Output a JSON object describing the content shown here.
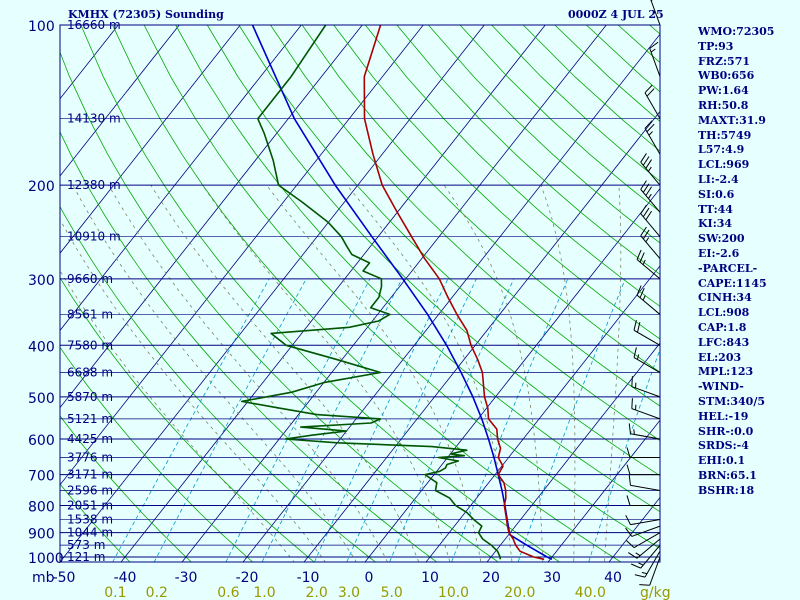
{
  "header": {
    "title": "KMHX (72305) Sounding",
    "time": "0000Z  4 JUL 25"
  },
  "indices": [
    "WMO:72305",
    "TP:93",
    "FRZ:571",
    "WB0:656",
    "PW:1.64",
    "RH:50.8",
    "MAXT:31.9",
    "TH:5749",
    "L57:4.9",
    "LCL:969",
    "LI:-2.4",
    "SI:0.6",
    "TT:44",
    "KI:34",
    "SW:200",
    "EI:-2.6",
    "-PARCEL-",
    "CAPE:1145",
    "CINH:34",
    "LCL:908",
    "CAP:1.8",
    "LFC:843",
    "EL:203",
    "MPL:123",
    "-WIND-",
    "STM:340/5",
    "HEL:-19",
    "SHR-:0.0",
    "SRDS:-4",
    "EHI:0.1",
    "BRN:65.1",
    "BSHR:18"
  ],
  "colors": {
    "axis_text": "#000080",
    "isobar": "#000080",
    "isotherm": "#000080",
    "dry_adiabat": "#00aa00",
    "moist_adiabat": "#808060",
    "mixing_ratio": "#0099cc",
    "temperature": "#aa0000",
    "dewpoint": "#005500",
    "parcel": "#0000cc",
    "mixing_label": "#999900",
    "wind_barb": "#000000",
    "background": "#e6ffff"
  },
  "chart_data": {
    "type": "skew-t log-p",
    "units_label": "mb",
    "pressure_ticks": [
      100,
      200,
      300,
      400,
      500,
      600,
      700,
      800,
      900,
      1000
    ],
    "height_labels": [
      {
        "p": 100,
        "label": "16660 m"
      },
      {
        "p": 150,
        "label": "14130 m"
      },
      {
        "p": 200,
        "label": "12380 m"
      },
      {
        "p": 250,
        "label": "10910 m"
      },
      {
        "p": 300,
        "label": "9660 m"
      },
      {
        "p": 350,
        "label": "8561 m"
      },
      {
        "p": 400,
        "label": "7580 m"
      },
      {
        "p": 450,
        "label": "6688 m"
      },
      {
        "p": 500,
        "label": "5870 m"
      },
      {
        "p": 550,
        "label": "5121 m"
      },
      {
        "p": 600,
        "label": "4425 m"
      },
      {
        "p": 650,
        "label": "3776 m"
      },
      {
        "p": 700,
        "label": "3171 m"
      },
      {
        "p": 750,
        "label": "2596 m"
      },
      {
        "p": 800,
        "label": "2051 m"
      },
      {
        "p": 850,
        "label": "1538 m"
      },
      {
        "p": 900,
        "label": "1044 m"
      },
      {
        "p": 950,
        "label": "573 m"
      },
      {
        "p": 1000,
        "label": "121 m"
      }
    ],
    "temperature_ticks": [
      -50,
      -40,
      -30,
      -20,
      -10,
      0,
      10,
      20,
      30,
      40
    ],
    "mixing_ratio_labels": [
      "0.1",
      "0.2",
      "0.6",
      "1.0",
      "2.0",
      "3.0",
      "5.0",
      "10.0",
      "20.0",
      "40.0"
    ],
    "mixing_ratio_unit": "g/kg",
    "temperature_profile": [
      {
        "p": 1010,
        "t": 29
      },
      {
        "p": 1000,
        "t": 27
      },
      {
        "p": 975,
        "t": 24
      },
      {
        "p": 950,
        "t": 22.5
      },
      {
        "p": 925,
        "t": 21.3
      },
      {
        "p": 900,
        "t": 19.8
      },
      {
        "p": 875,
        "t": 18.7
      },
      {
        "p": 850,
        "t": 17.7
      },
      {
        "p": 800,
        "t": 15.5
      },
      {
        "p": 775,
        "t": 14.8
      },
      {
        "p": 750,
        "t": 13.8
      },
      {
        "p": 725,
        "t": 12.5
      },
      {
        "p": 700,
        "t": 10.5
      },
      {
        "p": 675,
        "t": 10.2
      },
      {
        "p": 650,
        "t": 8.3
      },
      {
        "p": 625,
        "t": 7.5
      },
      {
        "p": 600,
        "t": 5.8
      },
      {
        "p": 575,
        "t": 4.4
      },
      {
        "p": 550,
        "t": 1.7
      },
      {
        "p": 525,
        "t": 0.2
      },
      {
        "p": 500,
        "t": -1.8
      },
      {
        "p": 475,
        "t": -3.5
      },
      {
        "p": 450,
        "t": -5.3
      },
      {
        "p": 425,
        "t": -7.8
      },
      {
        "p": 400,
        "t": -10.7
      },
      {
        "p": 375,
        "t": -13.3
      },
      {
        "p": 350,
        "t": -17
      },
      {
        "p": 325,
        "t": -20.7
      },
      {
        "p": 300,
        "t": -24.5
      },
      {
        "p": 275,
        "t": -29.5
      },
      {
        "p": 250,
        "t": -34.5
      },
      {
        "p": 225,
        "t": -40
      },
      {
        "p": 200,
        "t": -46
      },
      {
        "p": 175,
        "t": -51.5
      },
      {
        "p": 150,
        "t": -57.5
      },
      {
        "p": 125,
        "t": -63
      },
      {
        "p": 100,
        "t": -67
      }
    ],
    "dewpoint_profile": [
      {
        "p": 1010,
        "t": 21.8
      },
      {
        "p": 1000,
        "t": 21.5
      },
      {
        "p": 975,
        "t": 20.3
      },
      {
        "p": 950,
        "t": 18.5
      },
      {
        "p": 925,
        "t": 16.3
      },
      {
        "p": 900,
        "t": 14.8
      },
      {
        "p": 875,
        "t": 14.5
      },
      {
        "p": 850,
        "t": 12.3
      },
      {
        "p": 825,
        "t": 10.3
      },
      {
        "p": 800,
        "t": 7.5
      },
      {
        "p": 775,
        "t": 5.6
      },
      {
        "p": 750,
        "t": 2.3
      },
      {
        "p": 725,
        "t": 1.5
      },
      {
        "p": 700,
        "t": -1.5
      },
      {
        "p": 690,
        "t": 0.5
      },
      {
        "p": 680,
        "t": 1
      },
      {
        "p": 670,
        "t": 0.8
      },
      {
        "p": 660,
        "t": 2.2
      },
      {
        "p": 650,
        "t": -1.5
      },
      {
        "p": 645,
        "t": 2.5
      },
      {
        "p": 640,
        "t": 0
      },
      {
        "p": 630,
        "t": 2.2
      },
      {
        "p": 620,
        "t": -4
      },
      {
        "p": 610,
        "t": -20
      },
      {
        "p": 600,
        "t": -29
      },
      {
        "p": 590,
        "t": -25
      },
      {
        "p": 580,
        "t": -20
      },
      {
        "p": 570,
        "t": -28
      },
      {
        "p": 560,
        "t": -17
      },
      {
        "p": 550,
        "t": -16
      },
      {
        "p": 540,
        "t": -27
      },
      {
        "p": 525,
        "t": -34
      },
      {
        "p": 510,
        "t": -41
      },
      {
        "p": 490,
        "t": -34
      },
      {
        "p": 470,
        "t": -30
      },
      {
        "p": 450,
        "t": -22
      },
      {
        "p": 425,
        "t": -31
      },
      {
        "p": 400,
        "t": -41
      },
      {
        "p": 380,
        "t": -45
      },
      {
        "p": 370,
        "t": -33
      },
      {
        "p": 360,
        "t": -29
      },
      {
        "p": 350,
        "t": -28
      },
      {
        "p": 340,
        "t": -32
      },
      {
        "p": 325,
        "t": -32
      },
      {
        "p": 310,
        "t": -33
      },
      {
        "p": 300,
        "t": -34
      },
      {
        "p": 290,
        "t": -38
      },
      {
        "p": 280,
        "t": -38
      },
      {
        "p": 270,
        "t": -42
      },
      {
        "p": 260,
        "t": -44
      },
      {
        "p": 250,
        "t": -46
      },
      {
        "p": 235,
        "t": -50
      },
      {
        "p": 215,
        "t": -57
      },
      {
        "p": 200,
        "t": -63
      },
      {
        "p": 180,
        "t": -67
      },
      {
        "p": 160,
        "t": -72
      },
      {
        "p": 150,
        "t": -75
      },
      {
        "p": 125,
        "t": -75
      },
      {
        "p": 100,
        "t": -76
      }
    ],
    "parcel_profile": [
      {
        "p": 1010,
        "t": 30.3
      },
      {
        "p": 1000,
        "t": 29.2
      },
      {
        "p": 950,
        "t": 24.3
      },
      {
        "p": 908,
        "t": 20.2
      },
      {
        "p": 850,
        "t": 17.8
      },
      {
        "p": 800,
        "t": 15.6
      },
      {
        "p": 750,
        "t": 13.2
      },
      {
        "p": 700,
        "t": 10.5
      },
      {
        "p": 650,
        "t": 7.6
      },
      {
        "p": 600,
        "t": 4.3
      },
      {
        "p": 550,
        "t": 0.6
      },
      {
        "p": 500,
        "t": -3.7
      },
      {
        "p": 450,
        "t": -8.8
      },
      {
        "p": 400,
        "t": -14.7
      },
      {
        "p": 350,
        "t": -21.8
      },
      {
        "p": 300,
        "t": -30.5
      },
      {
        "p": 250,
        "t": -41
      },
      {
        "p": 200,
        "t": -53.7
      },
      {
        "p": 150,
        "t": -69
      },
      {
        "p": 100,
        "t": -88
      }
    ],
    "wind_barbs": [
      {
        "p": 1000,
        "dir": 200,
        "spd": 10
      },
      {
        "p": 975,
        "dir": 210,
        "spd": 15
      },
      {
        "p": 950,
        "dir": 220,
        "spd": 15
      },
      {
        "p": 925,
        "dir": 230,
        "spd": 15
      },
      {
        "p": 900,
        "dir": 240,
        "spd": 10
      },
      {
        "p": 875,
        "dir": 250,
        "spd": 10
      },
      {
        "p": 850,
        "dir": 260,
        "spd": 10
      },
      {
        "p": 800,
        "dir": 270,
        "spd": 10
      },
      {
        "p": 750,
        "dir": 280,
        "spd": 10
      },
      {
        "p": 700,
        "dir": 270,
        "spd": 10
      },
      {
        "p": 650,
        "dir": 270,
        "spd": 10
      },
      {
        "p": 600,
        "dir": 280,
        "spd": 15
      },
      {
        "p": 550,
        "dir": 290,
        "spd": 15
      },
      {
        "p": 500,
        "dir": 290,
        "spd": 15
      },
      {
        "p": 450,
        "dir": 300,
        "spd": 15
      },
      {
        "p": 400,
        "dir": 300,
        "spd": 20
      },
      {
        "p": 350,
        "dir": 310,
        "spd": 25
      },
      {
        "p": 300,
        "dir": 310,
        "spd": 25
      },
      {
        "p": 275,
        "dir": 320,
        "spd": 25
      },
      {
        "p": 250,
        "dir": 320,
        "spd": 30
      },
      {
        "p": 225,
        "dir": 320,
        "spd": 35
      },
      {
        "p": 200,
        "dir": 320,
        "spd": 35
      },
      {
        "p": 175,
        "dir": 330,
        "spd": 25
      },
      {
        "p": 150,
        "dir": 330,
        "spd": 20
      },
      {
        "p": 125,
        "dir": 340,
        "spd": 15
      },
      {
        "p": 100,
        "dir": 340,
        "spd": 15
      }
    ]
  }
}
